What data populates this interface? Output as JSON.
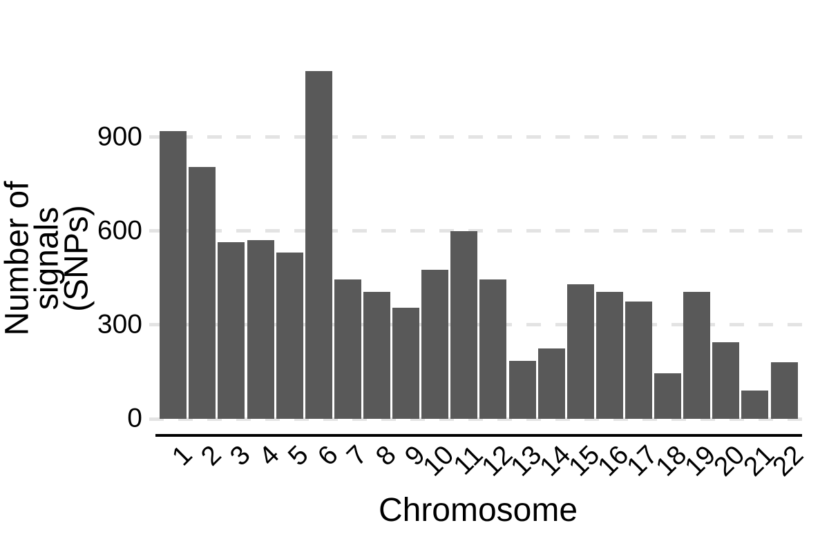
{
  "chart_data": {
    "type": "bar",
    "title": "",
    "xlabel": "Chromosome",
    "ylabel_lines": [
      "Number of signals",
      "(SNPs)"
    ],
    "categories": [
      "1",
      "2",
      "3",
      "4",
      "5",
      "6",
      "7",
      "8",
      "9",
      "10",
      "11",
      "12",
      "13",
      "14",
      "15",
      "16",
      "17",
      "18",
      "19",
      "20",
      "21",
      "22"
    ],
    "values": [
      920,
      805,
      565,
      570,
      530,
      1110,
      445,
      405,
      355,
      475,
      600,
      445,
      185,
      225,
      430,
      405,
      375,
      145,
      405,
      245,
      90,
      180
    ],
    "yticks": [
      0,
      300,
      600,
      900
    ],
    "ylim": [
      0,
      1165
    ],
    "legend": "none",
    "grid": "horizontal-dashed",
    "bar_color": "#595959",
    "grid_color": "#e3e3e3",
    "axis_line_color": "#000000",
    "text_color": "#000000"
  }
}
